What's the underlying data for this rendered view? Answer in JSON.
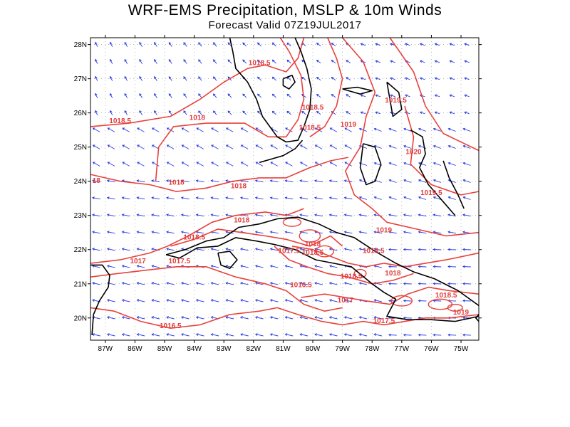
{
  "title": "WRF-EMS Precipitation, MSLP & 10m Winds",
  "subtitle": "Forecast Valid  07Z19JUL2017",
  "colors": {
    "isobar": "#e8413c",
    "wind": "#2a3ce6",
    "coast": "#000000",
    "grid": "#9a9a9a"
  },
  "map": {
    "lon_range": [
      -87.5,
      -74.4
    ],
    "lat_range": [
      19.35,
      28.2
    ],
    "lat_ticks": [
      {
        "value": 28,
        "label": "28N"
      },
      {
        "value": 27,
        "label": "27N"
      },
      {
        "value": 26,
        "label": "26N"
      },
      {
        "value": 25,
        "label": "25N"
      },
      {
        "value": 24,
        "label": "24N"
      },
      {
        "value": 23,
        "label": "23N"
      },
      {
        "value": 22,
        "label": "22N"
      },
      {
        "value": 21,
        "label": "21N"
      },
      {
        "value": 20,
        "label": "20N"
      }
    ],
    "lon_ticks": [
      {
        "value": -87,
        "label": "87W"
      },
      {
        "value": -86,
        "label": "86W"
      },
      {
        "value": -85,
        "label": "85W"
      },
      {
        "value": -84,
        "label": "84W"
      },
      {
        "value": -83,
        "label": "83W"
      },
      {
        "value": -82,
        "label": "82W"
      },
      {
        "value": -81,
        "label": "81W"
      },
      {
        "value": -80,
        "label": "80W"
      },
      {
        "value": -79,
        "label": "79W"
      },
      {
        "value": -78,
        "label": "78W"
      },
      {
        "value": -77,
        "label": "77W"
      },
      {
        "value": -76,
        "label": "76W"
      },
      {
        "value": -75,
        "label": "75W"
      }
    ],
    "isobar_labels": [
      {
        "text": "1018.5",
        "lon": -81.8,
        "lat": 27.4
      },
      {
        "text": "1018.5",
        "lon": -86.5,
        "lat": 25.7
      },
      {
        "text": "1018",
        "lon": -83.9,
        "lat": 25.8
      },
      {
        "text": "1018.5",
        "lon": -80.0,
        "lat": 26.1
      },
      {
        "text": "1018.5",
        "lon": -80.1,
        "lat": 25.5
      },
      {
        "text": "1019.5",
        "lon": -77.2,
        "lat": 26.3
      },
      {
        "text": "1019",
        "lon": -78.8,
        "lat": 25.6
      },
      {
        "text": "1020",
        "lon": -76.6,
        "lat": 24.8
      },
      {
        "text": "1019.5",
        "lon": -76.0,
        "lat": 23.6
      },
      {
        "text": "18",
        "lon": -87.3,
        "lat": 23.95
      },
      {
        "text": "1018",
        "lon": -84.6,
        "lat": 23.9
      },
      {
        "text": "1018",
        "lon": -82.5,
        "lat": 23.8
      },
      {
        "text": "1018",
        "lon": -82.4,
        "lat": 22.8
      },
      {
        "text": "1018.5",
        "lon": -84.0,
        "lat": 22.3
      },
      {
        "text": "1017.5",
        "lon": -84.5,
        "lat": 21.6
      },
      {
        "text": "1017",
        "lon": -85.9,
        "lat": 21.6
      },
      {
        "text": "1017.5",
        "lon": -80.8,
        "lat": 21.9
      },
      {
        "text": "1018",
        "lon": -80.0,
        "lat": 22.1
      },
      {
        "text": "1018.5",
        "lon": -80.0,
        "lat": 21.85
      },
      {
        "text": "1019",
        "lon": -77.6,
        "lat": 22.5
      },
      {
        "text": "1018.5",
        "lon": -77.95,
        "lat": 21.9
      },
      {
        "text": "1018.5",
        "lon": -78.7,
        "lat": 21.15
      },
      {
        "text": "1018",
        "lon": -77.3,
        "lat": 21.25
      },
      {
        "text": "1016.5",
        "lon": -80.4,
        "lat": 20.9
      },
      {
        "text": "1017",
        "lon": -78.9,
        "lat": 20.45
      },
      {
        "text": "1018.5",
        "lon": -75.5,
        "lat": 20.6
      },
      {
        "text": "1019",
        "lon": -75.0,
        "lat": 20.1
      },
      {
        "text": "1017.5",
        "lon": -77.6,
        "lat": 19.85
      },
      {
        "text": "1016.5",
        "lon": -84.8,
        "lat": 19.7
      }
    ]
  }
}
